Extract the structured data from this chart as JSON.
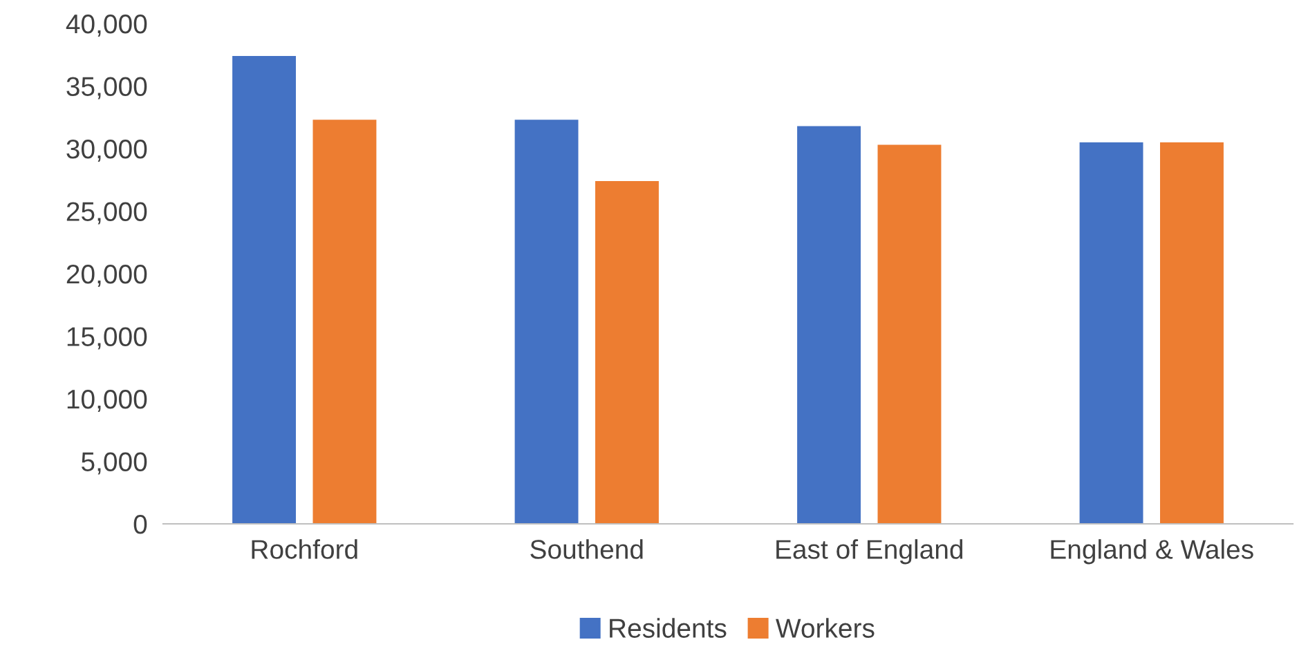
{
  "chart_data": {
    "type": "bar",
    "categories": [
      "Rochford",
      "Southend",
      "East of England",
      "England & Wales"
    ],
    "series": [
      {
        "name": "Residents",
        "color": "#4472c4",
        "values": [
          37400,
          32300,
          31800,
          30500
        ]
      },
      {
        "name": "Workers",
        "color": "#ed7d31",
        "values": [
          32300,
          27400,
          30300,
          30500
        ]
      }
    ],
    "ylim": [
      0,
      40000
    ],
    "yticks": [
      {
        "value": 0,
        "label": "0"
      },
      {
        "value": 5000,
        "label": "5,000"
      },
      {
        "value": 10000,
        "label": "10,000"
      },
      {
        "value": 15000,
        "label": "15,000"
      },
      {
        "value": 20000,
        "label": "20,000"
      },
      {
        "value": 25000,
        "label": "25,000"
      },
      {
        "value": 30000,
        "label": "30,000"
      },
      {
        "value": 35000,
        "label": "35,000"
      },
      {
        "value": 40000,
        "label": "40,000"
      }
    ],
    "grid": false,
    "legend": "bottom"
  }
}
